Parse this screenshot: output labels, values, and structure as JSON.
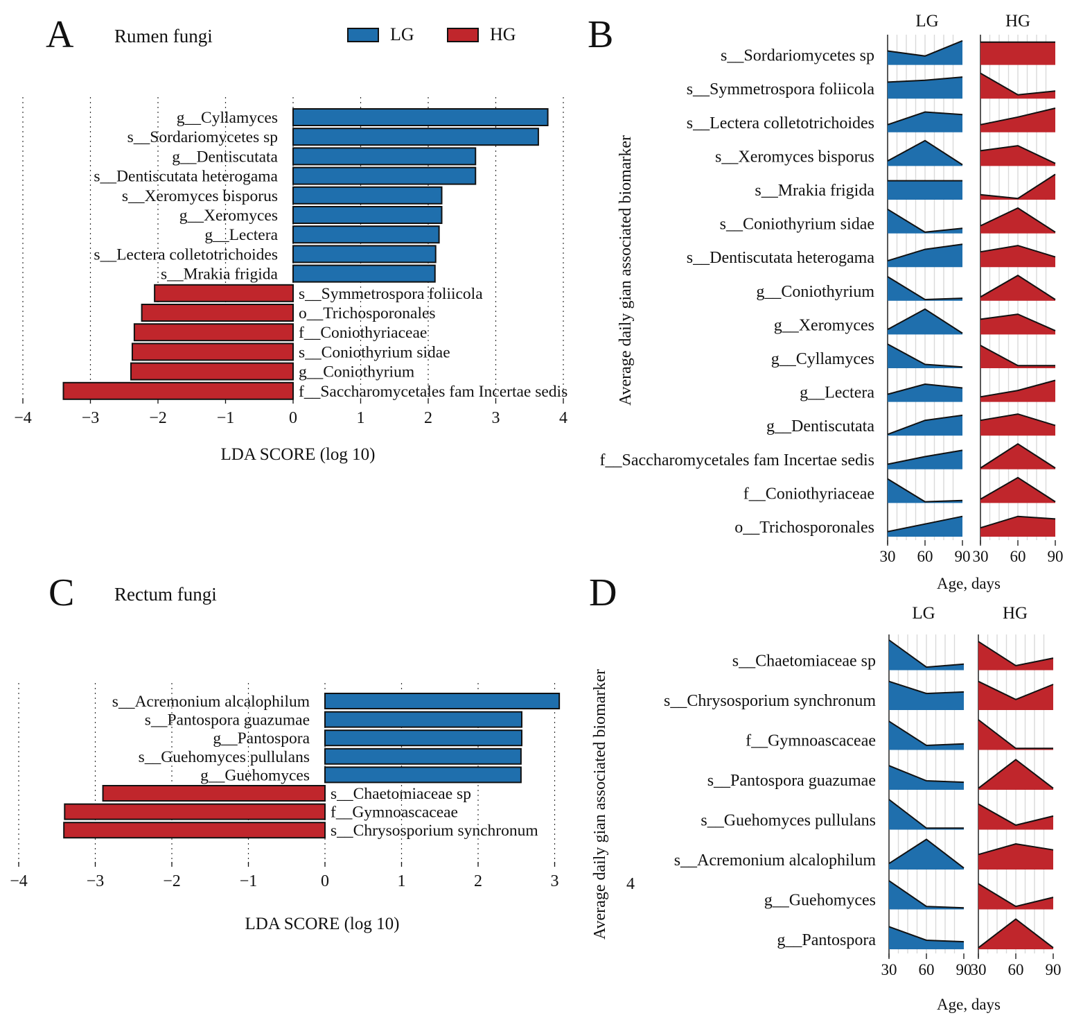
{
  "colors": {
    "LG": "#1f6fad",
    "HG": "#c0262c",
    "edge": "#111111",
    "grid": "#d9d9d9"
  },
  "legend": {
    "lg_label": "LG",
    "hg_label": "HG"
  },
  "chart_data": [
    {
      "panel": "A",
      "type": "bar",
      "orientation": "horizontal",
      "title": "Rumen fungi",
      "xlabel": "LDA SCORE (log 10)",
      "xlim": [
        -4,
        4
      ],
      "xticks": [
        -4,
        -3,
        -2,
        -1,
        0,
        1,
        2,
        3,
        4
      ],
      "xtick_labels": [
        "−4",
        "−3",
        "−2",
        "−1",
        "0",
        "1",
        "2",
        "3",
        "4"
      ],
      "legend": [
        "LG",
        "HG"
      ],
      "categories": [
        "g__Cyllamyces",
        "s__Sordariomycetes sp",
        "g__Dentiscutata",
        "s__Dentiscutata heterogama",
        "s__Xeromyces bisporus",
        "g__Xeromyces",
        "g__Lectera",
        "s__Lectera colletotrichoides",
        "s__Mrakia frigida",
        "s__Symmetrospora foliicola",
        "o__Trichosporonales",
        "f__Coniothyriaceae",
        "s__Coniothyrium sidae",
        "g__Coniothyrium",
        "f__Saccharomycetales fam Incertae sedis"
      ],
      "values": [
        3.77,
        3.63,
        2.7,
        2.7,
        2.2,
        2.2,
        2.16,
        2.11,
        2.1,
        -2.05,
        -2.24,
        -2.35,
        -2.38,
        -2.4,
        -3.4
      ],
      "groups": [
        "LG",
        "LG",
        "LG",
        "LG",
        "LG",
        "LG",
        "LG",
        "LG",
        "LG",
        "HG",
        "HG",
        "HG",
        "HG",
        "HG",
        "HG"
      ]
    },
    {
      "panel": "B",
      "type": "area",
      "ylabel": "Average daily gian associated biomarker",
      "xlabel": "Age, days",
      "x": [
        30,
        60,
        90
      ],
      "group_titles": [
        "LG",
        "HG"
      ],
      "rows": [
        {
          "name": "s__Sordariomycetes sp",
          "LG": [
            0.55,
            0.35,
            0.95
          ],
          "HG": [
            0.9,
            0.9,
            0.9
          ]
        },
        {
          "name": "s__Symmetrospora foliicola",
          "LG": [
            0.65,
            0.72,
            0.85
          ],
          "HG": [
            1.0,
            0.15,
            0.3
          ]
        },
        {
          "name": "s__Lectera colletotrichoides",
          "LG": [
            0.3,
            0.8,
            0.7
          ],
          "HG": [
            0.3,
            0.6,
            0.95
          ]
        },
        {
          "name": "s__Xeromyces bisporus",
          "LG": [
            0.2,
            1.0,
            0.05
          ],
          "HG": [
            0.6,
            0.8,
            0.1
          ]
        },
        {
          "name": "s__Mrakia frigida",
          "LG": [
            0.75,
            0.75,
            0.75
          ],
          "HG": [
            0.2,
            0.05,
            1.0
          ]
        },
        {
          "name": "s__Coniothyrium sidae",
          "LG": [
            0.95,
            0.05,
            0.2
          ],
          "HG": [
            0.3,
            1.0,
            0.05
          ]
        },
        {
          "name": "s__Dentiscutata heterogama",
          "LG": [
            0.25,
            0.7,
            0.9
          ],
          "HG": [
            0.6,
            0.85,
            0.4
          ]
        },
        {
          "name": "g__Coniothyrium",
          "LG": [
            0.95,
            0.05,
            0.1
          ],
          "HG": [
            0.15,
            1.0,
            0.05
          ]
        },
        {
          "name": "g__Xeromyces",
          "LG": [
            0.2,
            1.0,
            0.05
          ],
          "HG": [
            0.6,
            0.8,
            0.15
          ]
        },
        {
          "name": "g__Cyllamyces",
          "LG": [
            0.95,
            0.15,
            0.05
          ],
          "HG": [
            0.9,
            0.1,
            0.1
          ]
        },
        {
          "name": "g__Lectera",
          "LG": [
            0.3,
            0.7,
            0.55
          ],
          "HG": [
            0.2,
            0.45,
            0.85
          ]
        },
        {
          "name": "g__Dentiscutata",
          "LG": [
            0.05,
            0.6,
            0.8
          ],
          "HG": [
            0.6,
            0.85,
            0.4
          ]
        },
        {
          "name": "f__Saccharomycetales fam Incertae sedis",
          "LG": [
            0.2,
            0.5,
            0.75
          ],
          "HG": [
            0.05,
            1.0,
            0.05
          ]
        },
        {
          "name": "f__Coniothyriaceae",
          "LG": [
            0.95,
            0.05,
            0.1
          ],
          "HG": [
            0.15,
            1.0,
            0.05
          ]
        },
        {
          "name": "o__Trichosporonales",
          "LG": [
            0.2,
            0.5,
            0.8
          ],
          "HG": [
            0.35,
            0.8,
            0.7
          ]
        }
      ]
    },
    {
      "panel": "C",
      "type": "bar",
      "orientation": "horizontal",
      "title": "Rectum fungi",
      "xlabel": "LDA SCORE (log 10)",
      "xlim": [
        -4,
        3
      ],
      "xticks": [
        -4,
        -3,
        -2,
        -1,
        0,
        1,
        2,
        3
      ],
      "xtick_labels": [
        "−4",
        "−3",
        "−2",
        "−1",
        "0",
        "1",
        "2",
        "3"
      ],
      "categories": [
        "s__Acremonium alcalophilum",
        "s__Pantospora guazumae",
        "g__Pantospora",
        "s__Guehomyces pullulans",
        "g__Guehomyces",
        "s__Chaetomiaceae sp",
        "f__Gymnoascaceae",
        "s__Chrysosporium synchronum"
      ],
      "values": [
        3.06,
        2.57,
        2.57,
        2.56,
        2.56,
        -2.9,
        -3.4,
        -3.41
      ],
      "groups": [
        "LG",
        "LG",
        "LG",
        "LG",
        "LG",
        "HG",
        "HG",
        "HG"
      ]
    },
    {
      "panel": "D",
      "type": "area",
      "ylabel": "Average daily gian associated biomarker",
      "xlabel": "Age, days",
      "stray_tick_label": "4",
      "x": [
        30,
        60,
        90
      ],
      "group_titles": [
        "LG",
        "HG"
      ],
      "rows": [
        {
          "name": "s__Chaetomiaceae sp",
          "LG": [
            1.0,
            0.1,
            0.2
          ],
          "HG": [
            0.95,
            0.15,
            0.4
          ]
        },
        {
          "name": "s__Chrysosporium synchronum",
          "LG": [
            0.95,
            0.55,
            0.6
          ],
          "HG": [
            0.95,
            0.35,
            0.85
          ]
        },
        {
          "name": "f__Gymnoascaceae",
          "LG": [
            0.95,
            0.15,
            0.2
          ],
          "HG": [
            1.0,
            0.05,
            0.05
          ]
        },
        {
          "name": "s__Pantospora guazumae",
          "LG": [
            0.8,
            0.3,
            0.25
          ],
          "HG": [
            0.05,
            1.0,
            0.05
          ]
        },
        {
          "name": "s__Guehomyces pullulans",
          "LG": [
            1.0,
            0.05,
            0.05
          ],
          "HG": [
            0.85,
            0.15,
            0.45
          ]
        },
        {
          "name": "s__Acremonium alcalophilum",
          "LG": [
            0.2,
            1.0,
            0.05
          ],
          "HG": [
            0.5,
            0.85,
            0.65
          ]
        },
        {
          "name": "g__Guehomyces",
          "LG": [
            0.95,
            0.1,
            0.05
          ],
          "HG": [
            0.85,
            0.1,
            0.4
          ]
        },
        {
          "name": "g__Pantospora",
          "LG": [
            0.75,
            0.3,
            0.25
          ],
          "HG": [
            0.05,
            1.0,
            0.05
          ]
        }
      ]
    }
  ]
}
